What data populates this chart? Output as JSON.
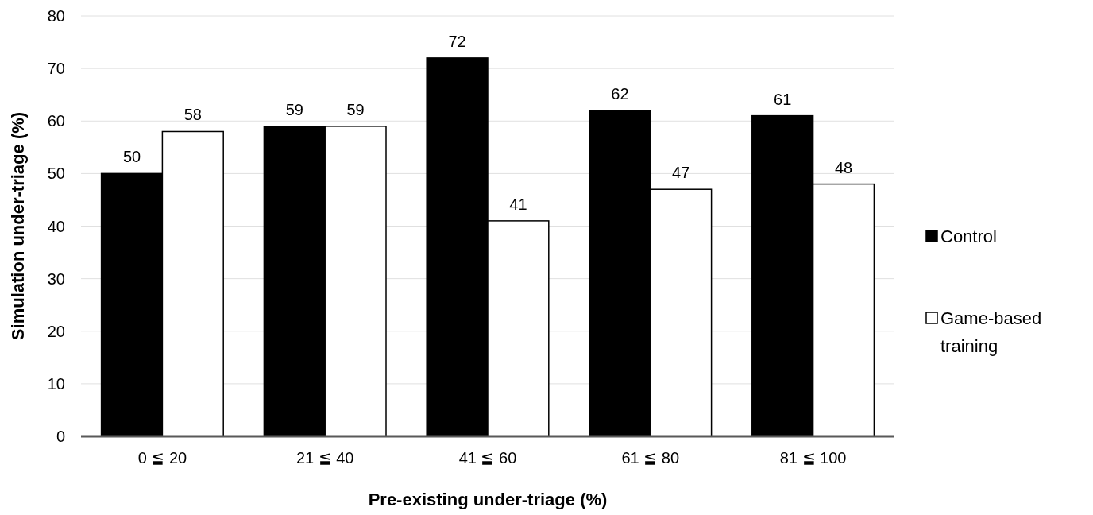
{
  "chart_data": {
    "type": "bar",
    "xlabel": "Pre-existing under-triage (%)",
    "ylabel": "Simulation under-triage (%)",
    "categories": [
      "0 ≦ 20",
      "21 ≦ 40",
      "41 ≦ 60",
      "61 ≦ 80",
      "81 ≦ 100"
    ],
    "series": [
      {
        "name": "Control",
        "color": "#000000",
        "values": [
          50,
          59,
          72,
          62,
          61
        ]
      },
      {
        "name": "Game-based training",
        "color": "#ffffff",
        "values": [
          58,
          59,
          41,
          47,
          48
        ]
      }
    ],
    "ylim": [
      0,
      80
    ],
    "yticks": [
      0,
      10,
      20,
      30,
      40,
      50,
      60,
      70,
      80
    ],
    "grid": "y",
    "legend": "right",
    "data_labels": true
  }
}
